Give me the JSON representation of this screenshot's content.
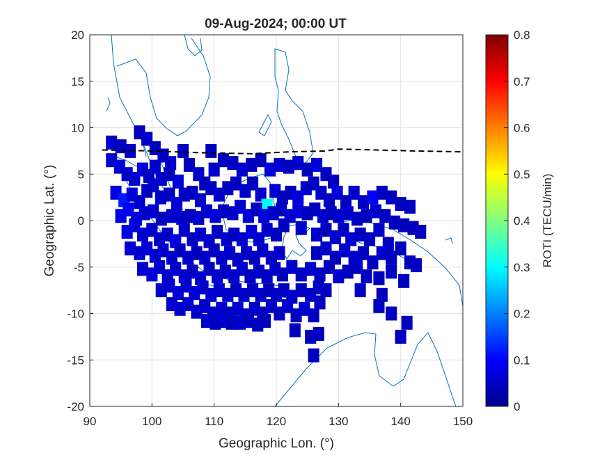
{
  "chart_data": {
    "type": "heatmap",
    "title": "09-Aug-2024; 00:00 UT",
    "xlabel": "Geographic Lon. (°)",
    "ylabel": "Geographic Lat. (°)",
    "xlim": [
      90,
      150
    ],
    "ylim": [
      -20,
      20
    ],
    "xticks": [
      90,
      100,
      110,
      120,
      130,
      140,
      150
    ],
    "yticks": [
      -20,
      -15,
      -10,
      -5,
      0,
      5,
      10,
      15,
      20
    ],
    "grid": true,
    "colorbar": {
      "label": "ROTI (TECU/min)",
      "range": [
        0,
        0.8
      ],
      "ticks": [
        0,
        0.1,
        0.2,
        0.3,
        0.4,
        0.5,
        0.6,
        0.7,
        0.8
      ],
      "colormap": "jet"
    },
    "magnetic_equator": {
      "style": "dashed",
      "color": "#000000",
      "lon": [
        92,
        100,
        108,
        116,
        122,
        128,
        130,
        136,
        142,
        150
      ],
      "lat": [
        7.6,
        7.5,
        7.3,
        7.2,
        7.4,
        7.5,
        7.7,
        7.6,
        7.5,
        7.4
      ]
    },
    "coastline_color": "#0072BD",
    "cells": [
      [
        93.5,
        8.4,
        0.06
      ],
      [
        95,
        8,
        0.05
      ],
      [
        96.5,
        7.5,
        0.05
      ],
      [
        98,
        9.5,
        0.05
      ],
      [
        99.2,
        8.8,
        0.06
      ],
      [
        100.5,
        7.8,
        0.05
      ],
      [
        101.8,
        7,
        0.05
      ],
      [
        103,
        6.2,
        0.06
      ],
      [
        105,
        7.5,
        0.05
      ],
      [
        109.5,
        7.5,
        0.05
      ],
      [
        93.5,
        6.5,
        0.06
      ],
      [
        94.8,
        5.8,
        0.07
      ],
      [
        96,
        5,
        0.06
      ],
      [
        97.2,
        4.5,
        0.06
      ],
      [
        98.5,
        5.5,
        0.07
      ],
      [
        99.5,
        4.8,
        0.05
      ],
      [
        100.5,
        5.8,
        0.06
      ],
      [
        101.5,
        4.5,
        0.06
      ],
      [
        102.8,
        5,
        0.05
      ],
      [
        104.2,
        4.2,
        0.07
      ],
      [
        106,
        6,
        0.05
      ],
      [
        107.5,
        5,
        0.06
      ],
      [
        108.5,
        4,
        0.05
      ],
      [
        110,
        5.5,
        0.06
      ],
      [
        111.5,
        6.5,
        0.05
      ],
      [
        113,
        6.2,
        0.05
      ],
      [
        114.5,
        5.5,
        0.06
      ],
      [
        116,
        6,
        0.05
      ],
      [
        117.5,
        6.5,
        0.05
      ],
      [
        119,
        5.5,
        0.07
      ],
      [
        120.5,
        6,
        0.06
      ],
      [
        122,
        5.8,
        0.05
      ],
      [
        123.5,
        6.2,
        0.06
      ],
      [
        125,
        5.5,
        0.05
      ],
      [
        126.5,
        6,
        0.07
      ],
      [
        128,
        5,
        0.05
      ],
      [
        129.2,
        4.2,
        0.05
      ],
      [
        94.2,
        3,
        0.08
      ],
      [
        95.5,
        2.2,
        0.12
      ],
      [
        96.8,
        2.8,
        0.07
      ],
      [
        98,
        2,
        0.06
      ],
      [
        99.2,
        3.2,
        0.05
      ],
      [
        100.2,
        3.8,
        0.06
      ],
      [
        101.4,
        2.5,
        0.06
      ],
      [
        102.8,
        2.8,
        0.05
      ],
      [
        104,
        1.8,
        0.07
      ],
      [
        105.2,
        2.8,
        0.05
      ],
      [
        106.5,
        3,
        0.05
      ],
      [
        107.8,
        2.2,
        0.06
      ],
      [
        109.5,
        3.5,
        0.05
      ],
      [
        110.8,
        2.8,
        0.06
      ],
      [
        112.2,
        3.5,
        0.05
      ],
      [
        113.5,
        4,
        0.05
      ],
      [
        115,
        3.2,
        0.06
      ],
      [
        116.2,
        4,
        0.05
      ],
      [
        117.5,
        2.8,
        0.06
      ],
      [
        118.5,
        1.6,
        0.3
      ],
      [
        119.8,
        3.2,
        0.07
      ],
      [
        121,
        2.5,
        0.05
      ],
      [
        122.3,
        3,
        0.05
      ],
      [
        123.5,
        2.5,
        0.07
      ],
      [
        124.8,
        3.5,
        0.06
      ],
      [
        126,
        4,
        0.05
      ],
      [
        127.2,
        3,
        0.06
      ],
      [
        128.5,
        2.2,
        0.05
      ],
      [
        129.8,
        3,
        0.07
      ],
      [
        131.2,
        2,
        0.05
      ],
      [
        132.5,
        3,
        0.06
      ],
      [
        134,
        2,
        0.05
      ],
      [
        135.5,
        2.5,
        0.1
      ],
      [
        137,
        3,
        0.05
      ],
      [
        138.5,
        2.5,
        0.05
      ],
      [
        140,
        1.8,
        0.05
      ],
      [
        141.5,
        1.5,
        0.05
      ],
      [
        95,
        0.5,
        0.08
      ],
      [
        96.2,
        1.2,
        0.09
      ],
      [
        97.5,
        0.2,
        0.07
      ],
      [
        98.8,
        0.8,
        0.06
      ],
      [
        100.2,
        1,
        0.06
      ],
      [
        101.5,
        0.2,
        0.05
      ],
      [
        103.2,
        0.5,
        0.06
      ],
      [
        104.8,
        0.3,
        0.06
      ],
      [
        106.2,
        0.5,
        0.05
      ],
      [
        107.5,
        0.3,
        0.06
      ],
      [
        108.8,
        1,
        0.06
      ],
      [
        110.2,
        0.5,
        0.07
      ],
      [
        111.5,
        1,
        0.05
      ],
      [
        113,
        0.8,
        0.06
      ],
      [
        114.2,
        1.5,
        0.06
      ],
      [
        115.5,
        0.5,
        0.07
      ],
      [
        116.8,
        1.2,
        0.05
      ],
      [
        118,
        0.5,
        0.07
      ],
      [
        119.5,
        0.8,
        0.06
      ],
      [
        120.8,
        1.2,
        0.05
      ],
      [
        122.2,
        0.5,
        0.06
      ],
      [
        123.5,
        1,
        0.07
      ],
      [
        125,
        0.8,
        0.05
      ],
      [
        126.2,
        1.2,
        0.05
      ],
      [
        127.5,
        0.5,
        0.06
      ],
      [
        128.8,
        0.8,
        0.05
      ],
      [
        130,
        0.5,
        0.06
      ],
      [
        131.5,
        0.8,
        0.06
      ],
      [
        133,
        0.2,
        0.05
      ],
      [
        134.5,
        0.5,
        0.05
      ],
      [
        136,
        1,
        0.06
      ],
      [
        137.5,
        0.5,
        0.05
      ],
      [
        139,
        -0.2,
        0.05
      ],
      [
        140.5,
        -0.5,
        0.05
      ],
      [
        142,
        -0.8,
        0.05
      ],
      [
        143.2,
        -1.2,
        0.05
      ],
      [
        96,
        -1.2,
        0.08
      ],
      [
        97.2,
        -0.5,
        0.07
      ],
      [
        98.5,
        -1.5,
        0.06
      ],
      [
        100,
        -1,
        0.06
      ],
      [
        101.2,
        -2,
        0.06
      ],
      [
        102.5,
        -1.5,
        0.05
      ],
      [
        103.8,
        -2.2,
        0.08
      ],
      [
        105.2,
        -1,
        0.06
      ],
      [
        106.5,
        -2,
        0.05
      ],
      [
        107.8,
        -1.5,
        0.06
      ],
      [
        109.2,
        -2.2,
        0.06
      ],
      [
        110.5,
        -1.2,
        0.05
      ],
      [
        112,
        -2,
        0.06
      ],
      [
        113.2,
        -1.5,
        0.05
      ],
      [
        114.5,
        -2,
        0.06
      ],
      [
        116,
        -1.2,
        0.07
      ],
      [
        117.2,
        -2,
        0.06
      ],
      [
        118.5,
        -1,
        0.06
      ],
      [
        120,
        -1.5,
        0.05
      ],
      [
        121.2,
        -0.5,
        0.05
      ],
      [
        124,
        -0.8,
        0.06
      ],
      [
        126.5,
        -1.5,
        0.06
      ],
      [
        128,
        -1,
        0.05
      ],
      [
        129.5,
        -1.8,
        0.06
      ],
      [
        130.8,
        -1,
        0.05
      ],
      [
        132,
        -2,
        0.06
      ],
      [
        133.5,
        -1.5,
        0.05
      ],
      [
        135,
        -2,
        0.05
      ],
      [
        136.5,
        -1,
        0.06
      ],
      [
        138,
        -2.5,
        0.05
      ],
      [
        96.5,
        -3,
        0.07
      ],
      [
        98,
        -3.5,
        0.06
      ],
      [
        99.2,
        -3,
        0.07
      ],
      [
        100.5,
        -3.8,
        0.06
      ],
      [
        101.8,
        -3.2,
        0.06
      ],
      [
        103.2,
        -4,
        0.06
      ],
      [
        104.5,
        -3.2,
        0.05
      ],
      [
        105.8,
        -4,
        0.06
      ],
      [
        107.2,
        -3.5,
        0.05
      ],
      [
        108.5,
        -4,
        0.06
      ],
      [
        110,
        -3.2,
        0.05
      ],
      [
        111.2,
        -4,
        0.06
      ],
      [
        112.5,
        -3.5,
        0.06
      ],
      [
        113.8,
        -4.2,
        0.05
      ],
      [
        115.2,
        -3.5,
        0.06
      ],
      [
        116.5,
        -4,
        0.05
      ],
      [
        117.8,
        -3.2,
        0.06
      ],
      [
        119.2,
        -4,
        0.05
      ],
      [
        120.5,
        -3.5,
        0.06
      ],
      [
        126.5,
        -3.5,
        0.05
      ],
      [
        128,
        -3,
        0.06
      ],
      [
        129.5,
        -4,
        0.05
      ],
      [
        131,
        -3.2,
        0.06
      ],
      [
        132.5,
        -4,
        0.06
      ],
      [
        134,
        -3.5,
        0.05
      ],
      [
        135.5,
        -4.5,
        0.05
      ],
      [
        137,
        -3.5,
        0.06
      ],
      [
        138.5,
        -4,
        0.05
      ],
      [
        140,
        -3,
        0.05
      ],
      [
        141.5,
        -4.5,
        0.05
      ],
      [
        142.5,
        -4.8,
        0.05
      ],
      [
        98.5,
        -5.2,
        0.06
      ],
      [
        100,
        -5.8,
        0.07
      ],
      [
        101.2,
        -5,
        0.06
      ],
      [
        102.5,
        -6,
        0.06
      ],
      [
        103.8,
        -5.2,
        0.06
      ],
      [
        105.2,
        -6,
        0.06
      ],
      [
        106.5,
        -5.5,
        0.05
      ],
      [
        107.8,
        -6.2,
        0.06
      ],
      [
        109.2,
        -5.2,
        0.05
      ],
      [
        110.5,
        -6,
        0.06
      ],
      [
        111.8,
        -5.5,
        0.05
      ],
      [
        113.2,
        -6,
        0.06
      ],
      [
        114.5,
        -5.2,
        0.06
      ],
      [
        115.8,
        -6,
        0.05
      ],
      [
        117.2,
        -5.5,
        0.06
      ],
      [
        118.5,
        -6,
        0.05
      ],
      [
        119.8,
        -5.2,
        0.06
      ],
      [
        121,
        -5.8,
        0.05
      ],
      [
        122.5,
        -5,
        0.06
      ],
      [
        124,
        -5.8,
        0.05
      ],
      [
        125.5,
        -5.2,
        0.06
      ],
      [
        127,
        -5.8,
        0.05
      ],
      [
        128.5,
        -5,
        0.05
      ],
      [
        130,
        -6,
        0.06
      ],
      [
        131.5,
        -5.5,
        0.05
      ],
      [
        133,
        -5,
        0.05
      ],
      [
        134.5,
        -6,
        0.05
      ],
      [
        136.5,
        -6.2,
        0.05
      ],
      [
        138.5,
        -5.5,
        0.05
      ],
      [
        140.5,
        -6.5,
        0.05
      ],
      [
        101.5,
        -7.5,
        0.06
      ],
      [
        102.8,
        -7,
        0.06
      ],
      [
        104.2,
        -7.8,
        0.07
      ],
      [
        105.5,
        -7,
        0.06
      ],
      [
        106.8,
        -7.8,
        0.07
      ],
      [
        108.2,
        -7.2,
        0.06
      ],
      [
        109.5,
        -8,
        0.06
      ],
      [
        110.8,
        -7.5,
        0.06
      ],
      [
        112.2,
        -8,
        0.06
      ],
      [
        113.5,
        -7.5,
        0.05
      ],
      [
        114.8,
        -8,
        0.06
      ],
      [
        116.2,
        -7.5,
        0.05
      ],
      [
        117.5,
        -8,
        0.06
      ],
      [
        118.8,
        -7.5,
        0.05
      ],
      [
        120,
        -8,
        0.06
      ],
      [
        121.2,
        -7.5,
        0.05
      ],
      [
        122.5,
        -8.2,
        0.06
      ],
      [
        124,
        -7.5,
        0.05
      ],
      [
        125.5,
        -8,
        0.06
      ],
      [
        126.8,
        -7.2,
        0.05
      ],
      [
        128,
        -7.5,
        0.05
      ],
      [
        133.5,
        -7.5,
        0.05
      ],
      [
        137,
        -8,
        0.05
      ],
      [
        103.2,
        -9,
        0.06
      ],
      [
        104.5,
        -9.5,
        0.06
      ],
      [
        105.8,
        -9,
        0.06
      ],
      [
        107.2,
        -9.8,
        0.06
      ],
      [
        108.5,
        -9.2,
        0.06
      ],
      [
        109.8,
        -10,
        0.06
      ],
      [
        111.2,
        -9.5,
        0.06
      ],
      [
        112.5,
        -10,
        0.05
      ],
      [
        113.8,
        -9.5,
        0.06
      ],
      [
        115.2,
        -10.2,
        0.06
      ],
      [
        116.5,
        -9.5,
        0.06
      ],
      [
        117.8,
        -10,
        0.05
      ],
      [
        119.2,
        -9.2,
        0.06
      ],
      [
        120.5,
        -10,
        0.05
      ],
      [
        121.8,
        -9.2,
        0.06
      ],
      [
        123.2,
        -10.2,
        0.05
      ],
      [
        124.5,
        -9.5,
        0.06
      ],
      [
        126,
        -10.2,
        0.05
      ],
      [
        127,
        -8.8,
        0.05
      ],
      [
        136.5,
        -9.2,
        0.05
      ],
      [
        138.5,
        -10,
        0.05
      ],
      [
        108.8,
        -10.8,
        0.06
      ],
      [
        110.2,
        -11,
        0.05
      ],
      [
        111.5,
        -10.8,
        0.06
      ],
      [
        112.8,
        -11,
        0.05
      ],
      [
        114.2,
        -11,
        0.06
      ],
      [
        115.5,
        -10.8,
        0.05
      ],
      [
        117,
        -11.2,
        0.05
      ],
      [
        118.2,
        -10.8,
        0.05
      ],
      [
        123,
        -11.8,
        0.05
      ],
      [
        125.5,
        -12.5,
        0.05
      ],
      [
        126.8,
        -12.2,
        0.05
      ],
      [
        140,
        -12.5,
        0.05
      ],
      [
        141,
        -11,
        0.05
      ],
      [
        126,
        -14.5,
        0.05
      ]
    ]
  }
}
